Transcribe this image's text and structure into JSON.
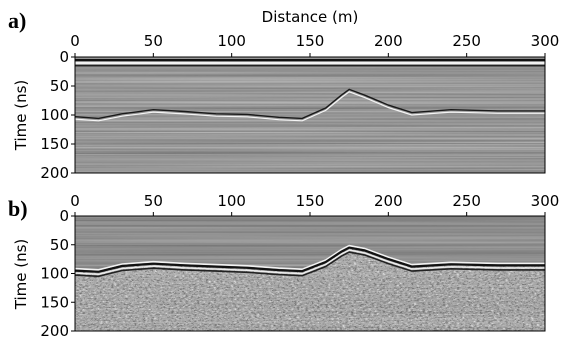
{
  "chart_data": [
    {
      "type": "heatmap",
      "panel_label": "a)",
      "title": "",
      "xlabel": "Distance (m)",
      "ylabel": "Time (ns)",
      "xlim": [
        0,
        300
      ],
      "ylim": [
        200,
        0
      ],
      "x_ticks": [
        0,
        50,
        100,
        150,
        200,
        250,
        300
      ],
      "y_ticks": [
        0,
        50,
        100,
        150,
        200
      ],
      "x_axis_position": "top",
      "colormap": "grayscale",
      "reflector_trace": {
        "x": [
          0,
          15,
          30,
          50,
          70,
          90,
          110,
          130,
          145,
          160,
          170,
          175,
          185,
          200,
          215,
          240,
          270,
          300
        ],
        "y": [
          105,
          108,
          100,
          93,
          96,
          100,
          101,
          106,
          108,
          90,
          68,
          58,
          68,
          85,
          98,
          93,
          95,
          95
        ]
      }
    },
    {
      "type": "heatmap",
      "panel_label": "b)",
      "title": "",
      "xlabel": "",
      "ylabel": "Time (ns)",
      "xlim": [
        0,
        300
      ],
      "ylim": [
        200,
        0
      ],
      "x_ticks": [
        0,
        50,
        100,
        150,
        200,
        250,
        300
      ],
      "y_ticks": [
        0,
        50,
        100,
        150,
        200
      ],
      "x_axis_position": "top",
      "colormap": "grayscale",
      "reflector_trace": {
        "x": [
          0,
          15,
          30,
          50,
          70,
          90,
          110,
          130,
          145,
          160,
          170,
          175,
          185,
          200,
          215,
          240,
          270,
          300
        ],
        "y": [
          95,
          97,
          87,
          83,
          86,
          88,
          90,
          94,
          96,
          80,
          62,
          55,
          60,
          75,
          88,
          84,
          86,
          86
        ]
      }
    }
  ]
}
